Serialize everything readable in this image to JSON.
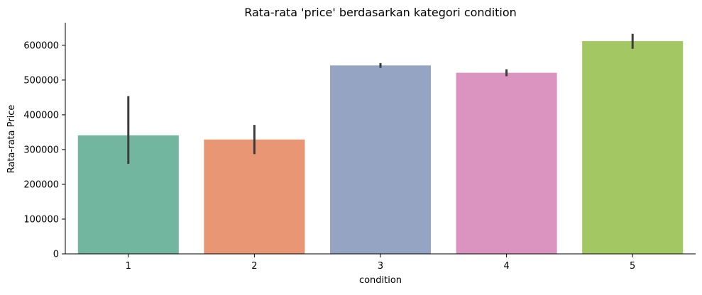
{
  "chart_data": {
    "type": "bar",
    "title": "Rata-rata 'price' berdasarkan kategori condition",
    "xlabel": "condition",
    "ylabel": "Rata-rata Price",
    "categories": [
      "1",
      "2",
      "3",
      "4",
      "5"
    ],
    "values": [
      341000,
      329000,
      542000,
      521000,
      612000
    ],
    "error_bars": [
      [
        259000,
        454000
      ],
      [
        287000,
        371000
      ],
      [
        535000,
        549000
      ],
      [
        511000,
        531000
      ],
      [
        590000,
        633000
      ]
    ],
    "colors": [
      "#73b6a0",
      "#e89674",
      "#95a4c3",
      "#da94bf",
      "#a3c763"
    ],
    "error_bar_color": "#3c3c3c",
    "ylim": [
      0,
      665000
    ],
    "y_ticks": [
      0,
      100000,
      200000,
      300000,
      400000,
      500000,
      600000
    ],
    "y_tick_labels": [
      "0",
      "100000",
      "200000",
      "300000",
      "400000",
      "500000",
      "600000"
    ],
    "grid": false,
    "legend": "none"
  }
}
